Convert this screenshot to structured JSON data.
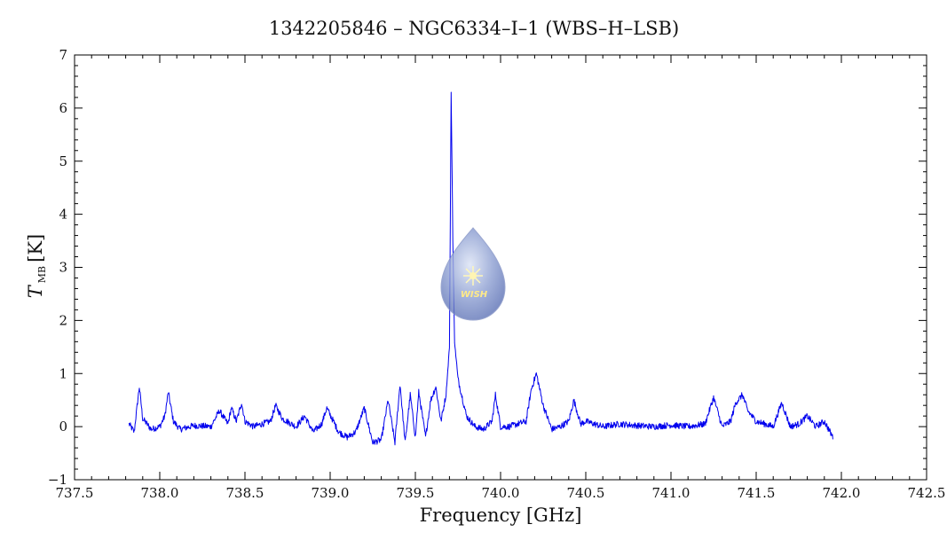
{
  "chart_data": {
    "type": "line",
    "title": "1342205846 – NGC6334–I–1 (WBS–H–LSB)",
    "xlabel": "Frequency [GHz]",
    "ylabel": {
      "main": "T",
      "sub": "MB",
      "unit": "[K]"
    },
    "xlim": [
      737.5,
      742.5
    ],
    "ylim": [
      -1,
      7
    ],
    "x_ticks": [
      "737.5",
      "738.0",
      "738.5",
      "739.0",
      "739.5",
      "740.0",
      "740.5",
      "741.0",
      "741.5",
      "742.0",
      "742.5"
    ],
    "y_ticks": [
      "−1",
      "0",
      "1",
      "2",
      "3",
      "4",
      "5",
      "6",
      "7"
    ],
    "grid": false,
    "series": [
      {
        "color": "#0000ee",
        "x": [
          737.82,
          737.85,
          737.88,
          737.9,
          737.95,
          738.0,
          738.03,
          738.05,
          738.08,
          738.12,
          738.2,
          738.3,
          738.35,
          738.4,
          738.42,
          738.45,
          738.48,
          738.5,
          738.55,
          738.6,
          738.65,
          738.68,
          738.72,
          738.8,
          738.85,
          738.9,
          738.95,
          738.98,
          739.05,
          739.1,
          739.15,
          739.2,
          739.25,
          739.3,
          739.34,
          739.38,
          739.41,
          739.44,
          739.47,
          739.5,
          739.52,
          739.56,
          739.59,
          739.62,
          739.65,
          739.68,
          739.7,
          739.71,
          739.72,
          739.73,
          739.75,
          739.8,
          739.85,
          739.9,
          739.95,
          739.97,
          740.0,
          740.05,
          740.1,
          740.15,
          740.18,
          740.21,
          740.25,
          740.3,
          740.35,
          740.4,
          740.43,
          740.47,
          740.5,
          740.6,
          740.7,
          740.8,
          740.9,
          741.0,
          741.1,
          741.2,
          741.25,
          741.3,
          741.35,
          741.38,
          741.42,
          741.45,
          741.5,
          741.55,
          741.6,
          741.65,
          741.7,
          741.75,
          741.8,
          741.85,
          741.9,
          741.95
        ],
        "y": [
          0.05,
          -0.1,
          0.75,
          0.15,
          -0.05,
          0.0,
          0.2,
          0.65,
          0.1,
          -0.05,
          0.02,
          0.0,
          0.3,
          0.05,
          0.35,
          0.1,
          0.45,
          0.1,
          0.0,
          0.05,
          0.1,
          0.4,
          0.15,
          0.0,
          0.2,
          -0.1,
          0.05,
          0.35,
          -0.1,
          -0.2,
          -0.1,
          0.35,
          -0.3,
          -0.25,
          0.5,
          -0.3,
          0.8,
          -0.3,
          0.6,
          -0.2,
          0.65,
          -0.2,
          0.5,
          0.75,
          0.1,
          0.6,
          1.5,
          6.3,
          3.5,
          1.6,
          0.9,
          0.2,
          0.0,
          -0.05,
          0.1,
          0.6,
          0.0,
          0.0,
          0.05,
          0.1,
          0.7,
          1.0,
          0.4,
          -0.05,
          0.0,
          0.1,
          0.5,
          0.05,
          0.1,
          0.0,
          0.05,
          0.02,
          0.0,
          0.03,
          0.0,
          0.05,
          0.55,
          0.0,
          0.1,
          0.45,
          0.6,
          0.3,
          0.1,
          0.05,
          0.0,
          0.45,
          0.0,
          0.05,
          0.2,
          0.0,
          0.1,
          -0.2
        ]
      }
    ]
  },
  "watermark": {
    "text": "WISH",
    "icon": "star-icon"
  }
}
